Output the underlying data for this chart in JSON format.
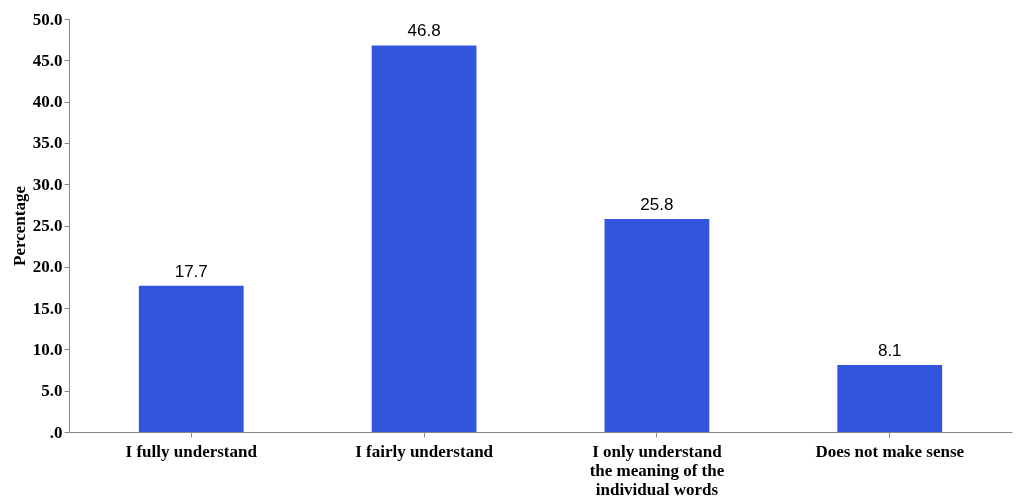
{
  "chart_data": {
    "type": "bar",
    "ylabel": "Percentage",
    "categories": [
      "I fully understand",
      "I fairly understand",
      "I only understand the meaning of the individual words",
      "Does not make sense"
    ],
    "values": [
      17.7,
      46.8,
      25.8,
      8.1
    ],
    "color": "#3355dd",
    "ylim": [
      0,
      50
    ],
    "yticks": [
      {
        "value": 0,
        "label": ".0"
      },
      {
        "value": 5,
        "label": "5.0"
      },
      {
        "value": 10,
        "label": "10.0"
      },
      {
        "value": 15,
        "label": "15.0"
      },
      {
        "value": 20,
        "label": "20.0"
      },
      {
        "value": 25,
        "label": "25.0"
      },
      {
        "value": 30,
        "label": "30.0"
      },
      {
        "value": 35,
        "label": "35.0"
      },
      {
        "value": 40,
        "label": "40.0"
      },
      {
        "value": 45,
        "label": "45.0"
      },
      {
        "value": 50,
        "label": "50.0"
      }
    ],
    "data_labels": true,
    "grid": false
  }
}
